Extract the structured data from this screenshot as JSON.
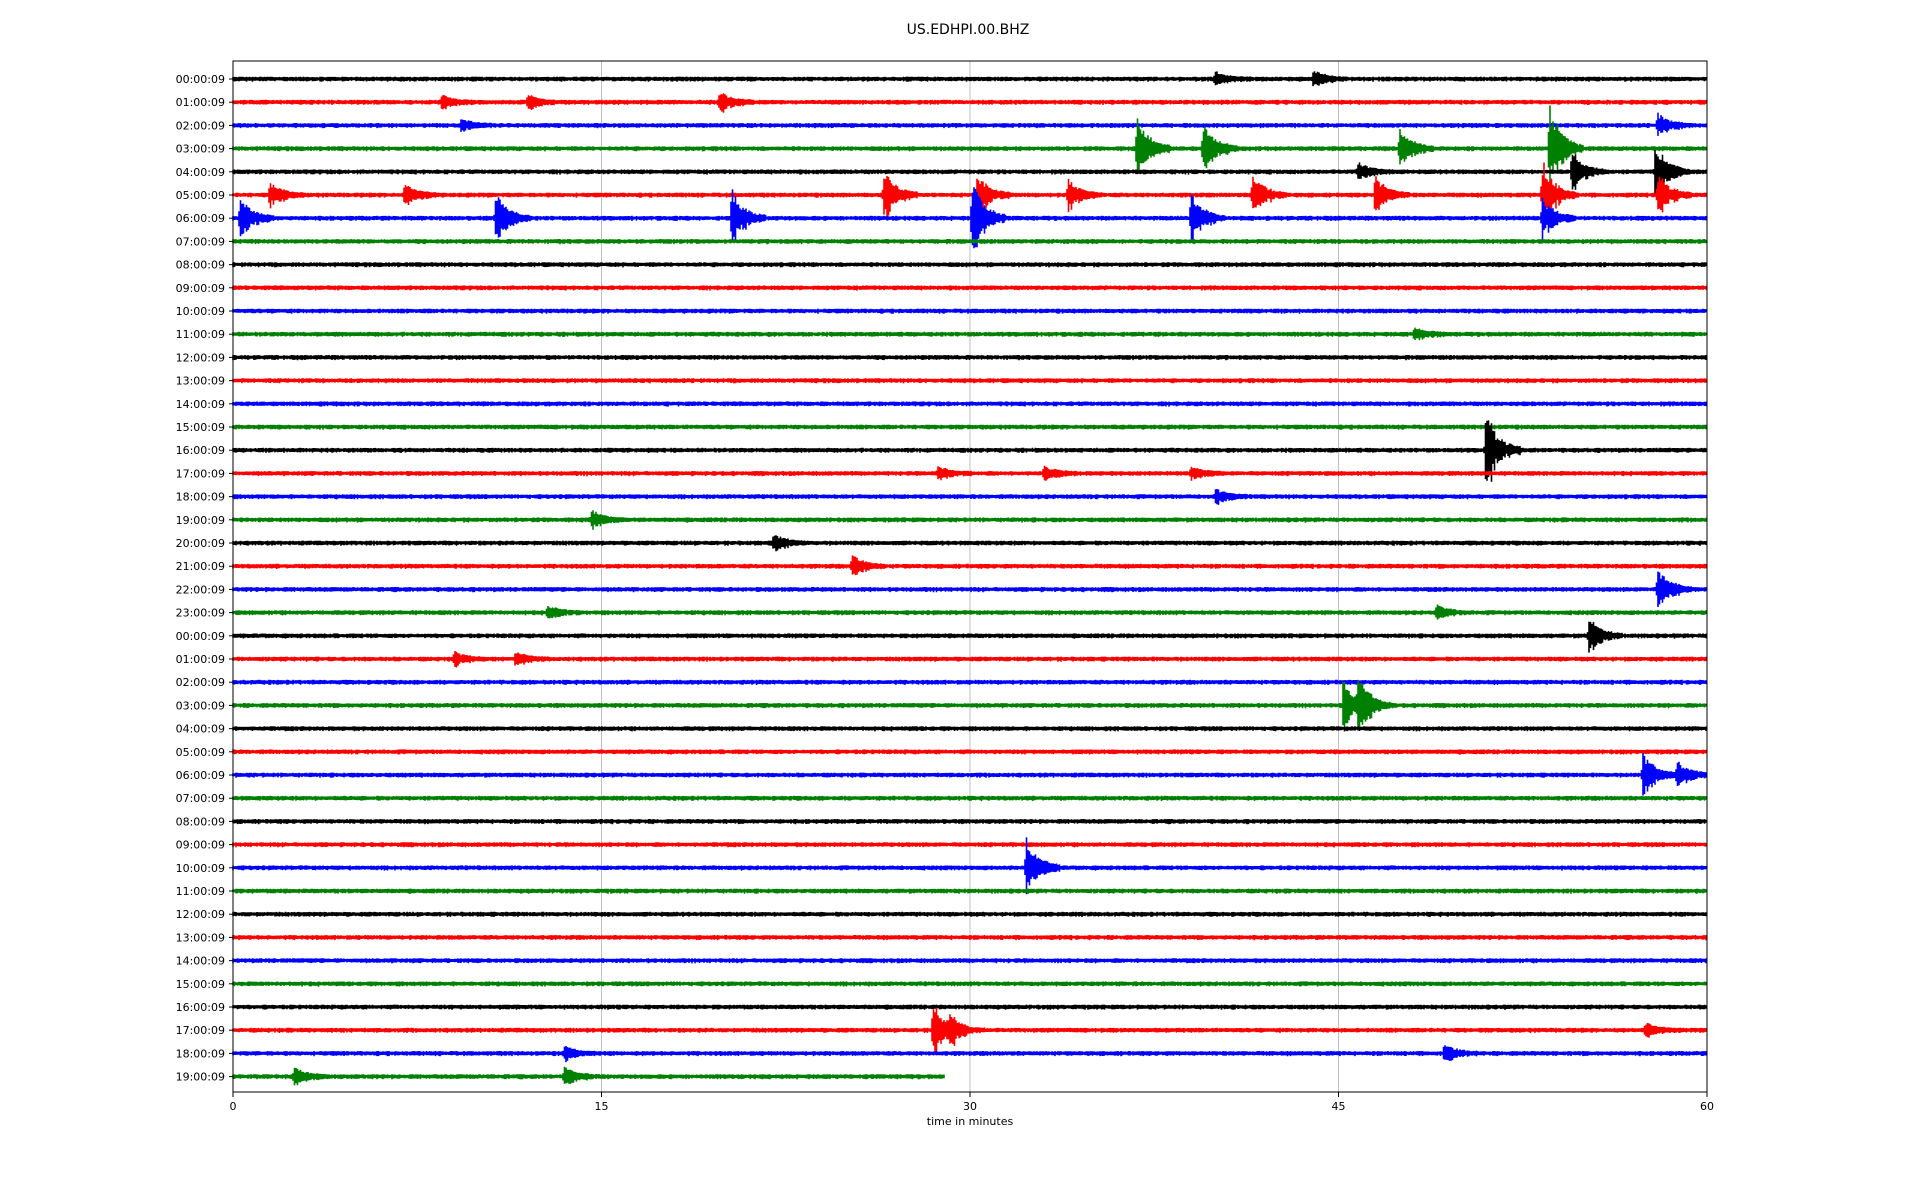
{
  "chart_data": {
    "type": "line",
    "title": "US.EDHPI.00.BHZ",
    "xlabel": "time in minutes",
    "ylabel": "",
    "xlim": [
      0,
      60
    ],
    "x_ticks": [
      "0",
      "15",
      "30",
      "45",
      "60"
    ],
    "x_tick_values": [
      0,
      15,
      30,
      45,
      60
    ],
    "grid": "vertical",
    "line_colors": [
      "#000000",
      "#ff0000",
      "#0000ff",
      "#008000"
    ],
    "rows": [
      {
        "label": "00:00:09",
        "events": [
          {
            "t": 40,
            "amp": 0.3
          },
          {
            "t": 44,
            "amp": 0.4
          }
        ]
      },
      {
        "label": "01:00:09",
        "events": [
          {
            "t": 8.5,
            "amp": 0.3
          },
          {
            "t": 12,
            "amp": 0.3
          },
          {
            "t": 19.8,
            "amp": 0.5
          }
        ]
      },
      {
        "label": "02:00:09",
        "events": [
          {
            "t": 9.3,
            "amp": 0.3
          },
          {
            "t": 58,
            "amp": 0.5
          }
        ]
      },
      {
        "label": "03:00:09",
        "events": [
          {
            "t": 36.8,
            "amp": 1.5
          },
          {
            "t": 39.5,
            "amp": 1.2
          },
          {
            "t": 47.5,
            "amp": 0.9
          },
          {
            "t": 53.6,
            "amp": 2.0
          }
        ]
      },
      {
        "label": "04:00:09",
        "events": [
          {
            "t": 45.8,
            "amp": 0.4
          },
          {
            "t": 54.5,
            "amp": 1.0
          },
          {
            "t": 57.9,
            "amp": 1.3
          }
        ]
      },
      {
        "label": "05:00:09",
        "events": [
          {
            "t": 1.5,
            "amp": 0.6
          },
          {
            "t": 7,
            "amp": 0.5
          },
          {
            "t": 26.5,
            "amp": 1.2
          },
          {
            "t": 30.3,
            "amp": 1.0
          },
          {
            "t": 34,
            "amp": 0.7
          },
          {
            "t": 41.5,
            "amp": 1.0
          },
          {
            "t": 46.5,
            "amp": 0.9
          },
          {
            "t": 53.3,
            "amp": 1.6
          },
          {
            "t": 58,
            "amp": 1.0
          }
        ]
      },
      {
        "label": "06:00:09",
        "events": [
          {
            "t": 0.3,
            "amp": 1.0
          },
          {
            "t": 10.7,
            "amp": 1.2
          },
          {
            "t": 20.3,
            "amp": 1.3
          },
          {
            "t": 30.1,
            "amp": 1.8
          },
          {
            "t": 39,
            "amp": 1.2
          },
          {
            "t": 53.3,
            "amp": 1.0
          }
        ]
      },
      {
        "label": "07:00:09",
        "events": []
      },
      {
        "label": "08:00:09",
        "events": []
      },
      {
        "label": "09:00:09",
        "events": []
      },
      {
        "label": "10:00:09",
        "events": []
      },
      {
        "label": "11:00:09",
        "events": [
          {
            "t": 48.1,
            "amp": 0.3
          }
        ]
      },
      {
        "label": "12:00:09",
        "events": []
      },
      {
        "label": "13:00:09",
        "events": []
      },
      {
        "label": "14:00:09",
        "events": []
      },
      {
        "label": "15:00:09",
        "events": []
      },
      {
        "label": "16:00:09",
        "events": [
          {
            "t": 51,
            "amp": 1.9
          }
        ]
      },
      {
        "label": "17:00:09",
        "events": [
          {
            "t": 28.7,
            "amp": 0.3
          },
          {
            "t": 33,
            "amp": 0.3
          },
          {
            "t": 39,
            "amp": 0.3
          }
        ]
      },
      {
        "label": "18:00:09",
        "events": [
          {
            "t": 40,
            "amp": 0.3
          }
        ]
      },
      {
        "label": "19:00:09",
        "events": [
          {
            "t": 14.6,
            "amp": 0.4
          }
        ]
      },
      {
        "label": "20:00:09",
        "events": [
          {
            "t": 22,
            "amp": 0.4
          }
        ]
      },
      {
        "label": "21:00:09",
        "events": [
          {
            "t": 25.2,
            "amp": 0.5
          }
        ]
      },
      {
        "label": "22:00:09",
        "events": [
          {
            "t": 58,
            "amp": 1.0
          }
        ]
      },
      {
        "label": "23:00:09",
        "events": [
          {
            "t": 12.8,
            "amp": 0.3
          },
          {
            "t": 49,
            "amp": 0.3
          }
        ]
      },
      {
        "label": "00:00:09",
        "events": [
          {
            "t": 55.2,
            "amp": 0.8
          }
        ]
      },
      {
        "label": "01:00:09",
        "events": [
          {
            "t": 9,
            "amp": 0.3
          },
          {
            "t": 11.5,
            "amp": 0.3
          }
        ]
      },
      {
        "label": "02:00:09",
        "events": []
      },
      {
        "label": "03:00:09",
        "events": [
          {
            "t": 45.2,
            "amp": 1.3
          },
          {
            "t": 45.8,
            "amp": 1.2
          }
        ]
      },
      {
        "label": "04:00:09",
        "events": []
      },
      {
        "label": "05:00:09",
        "events": []
      },
      {
        "label": "06:00:09",
        "events": [
          {
            "t": 57.4,
            "amp": 1.0
          },
          {
            "t": 58.8,
            "amp": 0.6
          }
        ]
      },
      {
        "label": "07:00:09",
        "events": []
      },
      {
        "label": "08:00:09",
        "events": []
      },
      {
        "label": "09:00:09",
        "events": []
      },
      {
        "label": "10:00:09",
        "events": [
          {
            "t": 32.3,
            "amp": 1.4
          }
        ]
      },
      {
        "label": "11:00:09",
        "events": []
      },
      {
        "label": "12:00:09",
        "events": []
      },
      {
        "label": "13:00:09",
        "events": []
      },
      {
        "label": "14:00:09",
        "events": []
      },
      {
        "label": "15:00:09",
        "events": []
      },
      {
        "label": "16:00:09",
        "events": []
      },
      {
        "label": "17:00:09",
        "events": [
          {
            "t": 28.5,
            "amp": 1.3
          },
          {
            "t": 29.2,
            "amp": 0.5
          },
          {
            "t": 57.5,
            "amp": 0.3
          }
        ]
      },
      {
        "label": "18:00:09",
        "events": [
          {
            "t": 13.5,
            "amp": 0.3
          },
          {
            "t": 49.3,
            "amp": 0.4
          }
        ]
      },
      {
        "label": "19:00:09",
        "end_minutes": 29,
        "events": [
          {
            "t": 2.5,
            "amp": 0.4
          },
          {
            "t": 13.5,
            "amp": 0.4
          }
        ]
      }
    ]
  }
}
